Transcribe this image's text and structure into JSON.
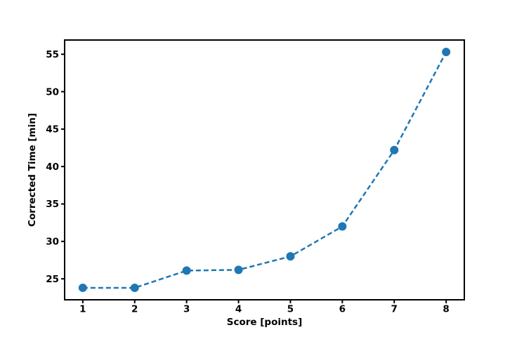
{
  "chart_data": {
    "type": "line",
    "x": [
      1,
      2,
      3,
      4,
      5,
      6,
      7,
      8
    ],
    "y": [
      23.8,
      23.8,
      26.1,
      26.2,
      28.0,
      32.0,
      42.2,
      55.3
    ],
    "xlabel": "Score [points]",
    "ylabel": "Corrected Time [min]",
    "xticks": [
      1,
      2,
      3,
      4,
      5,
      6,
      7,
      8
    ],
    "yticks": [
      25,
      30,
      35,
      40,
      45,
      50,
      55
    ],
    "xlim": [
      0.65,
      8.35
    ],
    "ylim": [
      22.2,
      56.9
    ],
    "grid": false,
    "legend": false,
    "title": "",
    "line_color": "#1f77b4",
    "line_style": "dashed",
    "marker": "circle",
    "spine_color": "#000000",
    "background_color": "#ffffff"
  }
}
